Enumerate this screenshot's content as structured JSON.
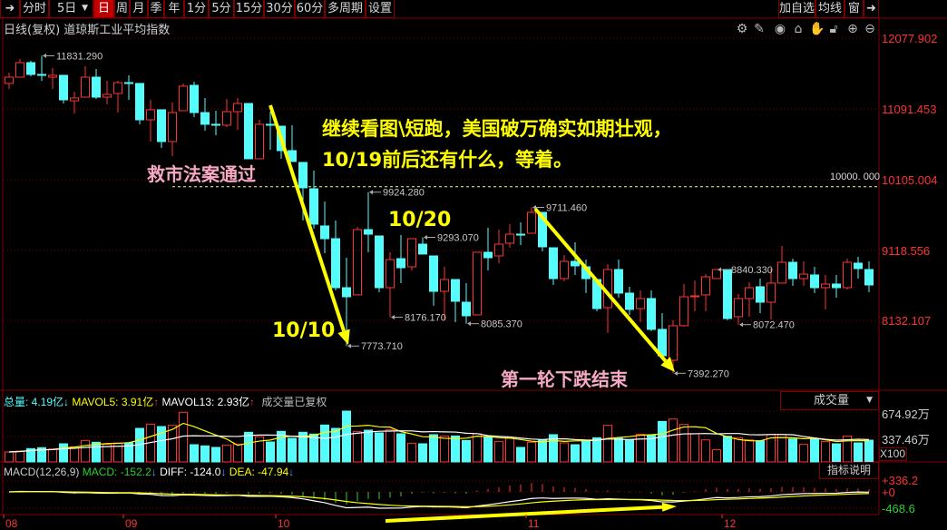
{
  "toolbar": {
    "items": [
      "分时",
      "5日",
      "日",
      "周",
      "月",
      "季",
      "年",
      "1分",
      "5分",
      "15分",
      "30分",
      "60分",
      "多周期",
      "设置"
    ],
    "active": "日",
    "right_items": [
      "加自选",
      "均线",
      "窗"
    ]
  },
  "header": {
    "title": "日线(复权)  道琼斯工业平均指数",
    "icons": [
      "settings-icon",
      "pen-icon",
      "eye-icon",
      "toolbox-icon",
      "hand-icon",
      "lock-icon",
      "zoom-in-icon",
      "zoom-out-icon"
    ]
  },
  "colors": {
    "up": "#ff3232",
    "down": "#54fcfc",
    "annotation": "#ffff00",
    "annotation_pink": "#f7a8c4",
    "grid": "#800000"
  },
  "chart_data": {
    "type": "candlestick",
    "price_axis_ticks": [
      "12077.902",
      "11091.453",
      "10105.004",
      "9118.556",
      "8132.107"
    ],
    "date_ticks": [
      {
        "label": "08",
        "index": 0
      },
      {
        "label": "09",
        "index": 11
      },
      {
        "label": "10",
        "index": 25
      },
      {
        "label": "11",
        "index": 48
      },
      {
        "label": "12",
        "index": 66
      }
    ],
    "ohlc": [
      [
        11444,
        11596,
        11367,
        11532
      ],
      [
        11532,
        11786,
        11532,
        11735
      ],
      [
        11735,
        11761,
        11545,
        11570
      ],
      [
        11570,
        11831.29,
        11482,
        11558
      ],
      [
        11532,
        11659,
        11367,
        11558
      ],
      [
        11558,
        11558,
        11164,
        11215
      ],
      [
        11202,
        11329,
        11025,
        11241
      ],
      [
        11253,
        11685,
        11253,
        11532
      ],
      [
        11532,
        11647,
        11228,
        11253
      ],
      [
        11253,
        11482,
        11152,
        11291
      ],
      [
        11304,
        11482,
        11037,
        11456
      ],
      [
        11456,
        11558,
        11215,
        11444
      ],
      [
        11444,
        11444,
        10873,
        10936
      ],
      [
        10936,
        11215,
        10632,
        11076
      ],
      [
        11076,
        11076,
        10543,
        10632
      ],
      [
        10632,
        11177,
        10429,
        11037
      ],
      [
        11063,
        11444,
        11063,
        11406
      ],
      [
        11418,
        11469,
        10974,
        11037
      ],
      [
        11037,
        11241,
        10784,
        10873
      ],
      [
        10873,
        11063,
        10720,
        10860
      ],
      [
        10860,
        11228,
        10835,
        11050
      ],
      [
        11050,
        11241,
        10797,
        11164
      ],
      [
        11164,
        11164,
        10391,
        10391
      ],
      [
        10391,
        10936,
        10391,
        10873
      ],
      [
        10873,
        11050,
        10518,
        10860
      ],
      [
        10847,
        10847,
        10391,
        10505
      ],
      [
        10505,
        10860,
        10353,
        10353
      ],
      [
        10340,
        10340,
        9528,
        9985
      ],
      [
        9972,
        10225,
        9413,
        9477
      ],
      [
        9452,
        9794,
        9071,
        9274
      ],
      [
        9274,
        9528,
        8551,
        8589
      ],
      [
        8589,
        9008,
        7773.71,
        8462
      ],
      [
        8488,
        9439,
        8488,
        9401
      ],
      [
        9401,
        9924.28,
        9084,
        9337
      ],
      [
        9312,
        9312,
        8526,
        8589
      ],
      [
        8589,
        9084,
        8176.17,
        8982
      ],
      [
        8995,
        9325,
        8653,
        8868
      ],
      [
        8881,
        9274,
        8830,
        9274
      ],
      [
        9198,
        9293.07,
        9059,
        9059
      ],
      [
        9033,
        9033,
        8336,
        8538
      ],
      [
        8538,
        8881,
        8133,
        8703
      ],
      [
        8703,
        8703,
        8107,
        8399
      ],
      [
        8386,
        8653,
        8085.37,
        8196
      ],
      [
        8209,
        9084,
        8209,
        9084
      ],
      [
        9084,
        9426,
        8830,
        9008
      ],
      [
        9033,
        9401,
        8932,
        9198
      ],
      [
        9211,
        9477,
        9147,
        9337
      ],
      [
        9337,
        9502,
        9185,
        9330
      ],
      [
        9350,
        9711.46,
        9350,
        9642
      ],
      [
        9642,
        9642,
        9097,
        9160
      ],
      [
        9147,
        9147,
        8627,
        8716
      ],
      [
        8716,
        9046,
        8678,
        8957
      ],
      [
        8957,
        9223,
        8767,
        8894
      ],
      [
        8881,
        8982,
        8513,
        8716
      ],
      [
        8703,
        8703,
        8259,
        8297
      ],
      [
        8310,
        8919,
        7956,
        8843
      ],
      [
        8843,
        8982,
        8450,
        8513
      ],
      [
        8513,
        8602,
        8209,
        8285
      ],
      [
        8297,
        8551,
        8107,
        8437
      ],
      [
        8437,
        8551,
        7981,
        8006
      ],
      [
        8006,
        8234,
        7637,
        7637
      ],
      [
        7574,
        8133,
        7392.27,
        8057
      ],
      [
        8057,
        8640,
        8044,
        8462
      ],
      [
        8462,
        8691,
        8259,
        8475
      ],
      [
        8488,
        8779,
        8259,
        8741
      ],
      [
        8716,
        8840.33,
        8716,
        8843
      ],
      [
        8843,
        8843,
        8133,
        8158
      ],
      [
        8183,
        8500,
        8072.47,
        8437
      ],
      [
        8437,
        8665,
        8183,
        8589
      ],
      [
        8602,
        8716,
        8234,
        8386
      ],
      [
        8386,
        8856,
        8145,
        8653
      ],
      [
        8653,
        9172,
        8653,
        8944
      ],
      [
        8944,
        8995,
        8615,
        8716
      ],
      [
        8716,
        8957,
        8615,
        8779
      ],
      [
        8767,
        8881,
        8513,
        8589
      ],
      [
        8589,
        8767,
        8285,
        8640
      ],
      [
        8640,
        8767,
        8450,
        8589
      ],
      [
        8589,
        8995,
        8564,
        8944
      ],
      [
        8932,
        9020,
        8716,
        8856
      ],
      [
        8843,
        8957,
        8526,
        8627
      ]
    ],
    "price_labels": [
      {
        "text": "11831.290",
        "index": 3,
        "at": "high"
      },
      {
        "text": "9924.280",
        "index": 33,
        "at": "high"
      },
      {
        "text": "9293.070",
        "index": 38,
        "at": "high"
      },
      {
        "text": "9711.460",
        "index": 48,
        "at": "high"
      },
      {
        "text": "8840.330",
        "index": 65,
        "at": "high"
      },
      {
        "text": "7773.710",
        "index": 31,
        "at": "low"
      },
      {
        "text": "8176.170",
        "index": 35,
        "at": "low"
      },
      {
        "text": "8085.370",
        "index": 42,
        "at": "low"
      },
      {
        "text": "8072.470",
        "index": 67,
        "at": "low"
      },
      {
        "text": "7392.270",
        "index": 61,
        "at": "low"
      }
    ],
    "reference_line": {
      "value": 10000,
      "label": "10000. 000"
    },
    "volume": {
      "unit_ticks": [
        "674.92万",
        "337.46万"
      ],
      "multiplier": "X100",
      "values": [
        133,
        145,
        177,
        189,
        173,
        241,
        201,
        285,
        261,
        233,
        253,
        253,
        446,
        502,
        470,
        486,
        659,
        229,
        213,
        193,
        225,
        237,
        394,
        334,
        265,
        406,
        313,
        394,
        370,
        490,
        446,
        675,
        402,
        422,
        386,
        426,
        374,
        249,
        241,
        362,
        345,
        345,
        285,
        374,
        334,
        273,
        313,
        193,
        261,
        293,
        362,
        253,
        229,
        273,
        321,
        486,
        313,
        289,
        366,
        353,
        538,
        570,
        498,
        374,
        293,
        161,
        341,
        321,
        293,
        281,
        362,
        362,
        305,
        233,
        305,
        273,
        241,
        345,
        253,
        289
      ]
    },
    "macd_axis_ticks": [
      "+336.2",
      "+0",
      "-468.6"
    ]
  },
  "volume_panel": {
    "legend": {
      "total_label": "总量: 4.19亿",
      "total_arrow": "↓",
      "mavol5": "MAVOL5: 3.91亿",
      "mavol5_arrow": "↑",
      "mavol13": "MAVOL13: 2.93亿",
      "mavol13_arrow": "↑",
      "note": "成交量已复权"
    },
    "selector": "成交量"
  },
  "macd_panel": {
    "legend": {
      "name": "MACD(12,26,9)",
      "macd": "MACD: -152.2",
      "macd_arrow": "↓",
      "diff": "DIFF: -124.0",
      "diff_arrow": "↓",
      "dea": "DEA: -47.94",
      "dea_arrow": "↓"
    },
    "help_button": "指标说明"
  },
  "annotations": {
    "line1": "继续看图\\短跑，美国破万确实如期壮观，",
    "line2": "10/19前后还有什么，等着。",
    "rescue": "救市法案通过",
    "d1020": "10/20",
    "d1010": "10/10",
    "end": "第一轮下跌结束"
  }
}
